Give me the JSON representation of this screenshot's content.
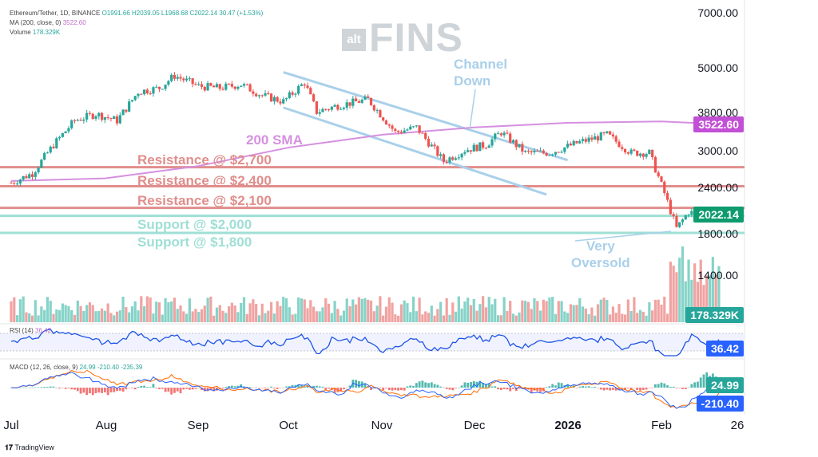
{
  "legend": {
    "symbol": "Ethereum/Tether, 1D, BINANCE",
    "ohlc": "O1991.66 H2039.05 L1968.68 C2022.14 30.47 (+1.53%)",
    "ma_label": "MA (200, close, 0)",
    "ma_value": "3522.60",
    "volume_label": "Volume",
    "volume_value": "178.329K",
    "rsi_label": "RSI (14)",
    "rsi_value": "36.42",
    "macd_label": "MACD (12, 26, close, 9)",
    "macd_values": "24.99  -210.40  -235.39"
  },
  "logo": {
    "alt": "alt",
    "fins": "FINS"
  },
  "watermark": "TradingView",
  "colors": {
    "up": "#26a69a",
    "down": "#ef5350",
    "vol_up": "#86d3c8",
    "vol_down": "#f0a3a1",
    "sma": "#d590e0",
    "resistance": "#e08e8c",
    "support": "#9fdfd5",
    "channel": "#a9d0ea",
    "rsi": "#1e53e5",
    "macd": "#2962ff",
    "signal": "#ff6d00",
    "price_tag": "#0e9b6e",
    "sma_tag": "#c34fd6",
    "rsi_tag": "#2962ff"
  },
  "annotations": {
    "sma": "200 SMA",
    "channel": "Channel\nDown",
    "oversold": "Very\nOversold",
    "r1": "Resistance @ $2,700",
    "r2": "Resistance @ $2,400",
    "r3": "Resistance @ $2,100",
    "s1": "Support @ $2,000",
    "s2": "Support @ $1,800"
  },
  "tags": {
    "sma": "3522.60",
    "price": "2022.14",
    "volume": "178.329K",
    "rsi": "36.42",
    "macd": "24.99",
    "signal": "-210.40"
  },
  "chart_data": {
    "type": "candlestick",
    "title": "Ethereum/Tether, 1D, BINANCE",
    "y_scale": "log",
    "yticks": [
      "7000.00",
      "5000.00",
      "3800.00",
      "3000.00",
      "2400.00",
      "1800.00",
      "1400.00"
    ],
    "xticks": [
      "Jul",
      "Aug",
      "Sep",
      "Oct",
      "Nov",
      "Dec",
      "2026",
      "Feb",
      "26"
    ],
    "levels": {
      "resistance": [
        2700,
        2400,
        2100
      ],
      "support": [
        2000,
        1800
      ]
    },
    "close_path": [
      [
        "2025-07-01",
        2450
      ],
      [
        "2025-07-08",
        2600
      ],
      [
        "2025-07-15",
        3100
      ],
      [
        "2025-07-22",
        3600
      ],
      [
        "2025-07-29",
        3750
      ],
      [
        "2025-08-05",
        3600
      ],
      [
        "2025-08-12",
        4300
      ],
      [
        "2025-08-19",
        4400
      ],
      [
        "2025-08-24",
        4750
      ],
      [
        "2025-09-01",
        4450
      ],
      [
        "2025-09-08",
        4400
      ],
      [
        "2025-09-15",
        4500
      ],
      [
        "2025-09-22",
        4200
      ],
      [
        "2025-09-29",
        4050
      ],
      [
        "2025-10-06",
        4550
      ],
      [
        "2025-10-10",
        3800
      ],
      [
        "2025-10-17",
        3950
      ],
      [
        "2025-10-27",
        4100
      ],
      [
        "2025-11-05",
        3350
      ],
      [
        "2025-11-12",
        3450
      ],
      [
        "2025-11-21",
        2800
      ],
      [
        "2025-11-28",
        3000
      ],
      [
        "2025-12-05",
        3100
      ],
      [
        "2025-12-10",
        3350
      ],
      [
        "2025-12-18",
        2950
      ],
      [
        "2025-12-26",
        2950
      ],
      [
        "2026-01-05",
        3150
      ],
      [
        "2026-01-14",
        3300
      ],
      [
        "2026-01-22",
        2950
      ],
      [
        "2026-01-28",
        2950
      ],
      [
        "2026-02-02",
        2300
      ],
      [
        "2026-02-06",
        1850
      ],
      [
        "2026-02-10",
        2050
      ],
      [
        "2026-02-15",
        2000
      ],
      [
        "2026-02-20",
        2022.14
      ]
    ],
    "sma200": [
      [
        "2025-07-01",
        2480
      ],
      [
        "2025-08-01",
        2520
      ],
      [
        "2025-09-01",
        2720
      ],
      [
        "2025-10-01",
        3050
      ],
      [
        "2025-11-01",
        3300
      ],
      [
        "2025-12-01",
        3450
      ],
      [
        "2026-01-01",
        3550
      ],
      [
        "2026-02-01",
        3580
      ],
      [
        "2026-02-20",
        3522.6
      ]
    ],
    "channel_down": {
      "upper": [
        [
          "2025-09-29",
          4850
        ],
        [
          "2026-01-01",
          2820
        ]
      ],
      "lower": [
        [
          "2025-09-29",
          3900
        ],
        [
          "2025-12-25",
          2280
        ]
      ]
    },
    "volume_last": "178.329K",
    "rsi_last": 36.42,
    "macd_last": 24.99,
    "signal_last": -210.4
  }
}
